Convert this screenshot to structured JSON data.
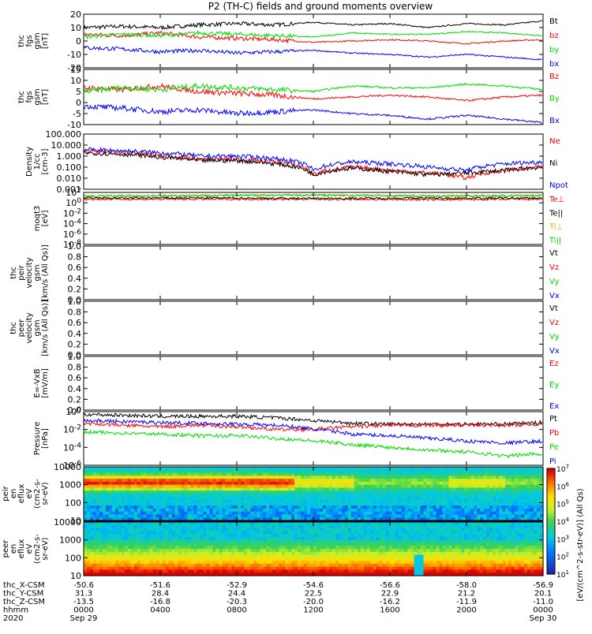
{
  "title": "P2 (TH-C) fields and ground moments overview",
  "colors": {
    "black": "#000000",
    "red": "#ff0000",
    "green": "#00dd00",
    "blue": "#0000ff"
  },
  "colorbar_label": "[eV/(cm^2-s-str-eV)] (All Qs)",
  "colorbar_ticks": [
    "10^1",
    "10^2",
    "10^3",
    "10^4",
    "10^5",
    "10^6",
    "10^7"
  ],
  "footer": {
    "rows": [
      {
        "label": "thc_X-CSM",
        "values": [
          "-50.6",
          "-51.6",
          "-52.9",
          "-54.6",
          "-56.6",
          "-58.0",
          "-56.9"
        ]
      },
      {
        "label": "thc_Y-CSM",
        "values": [
          "31.3",
          "28.4",
          "24.4",
          "22.5",
          "22.9",
          "21.2",
          "20.1"
        ]
      },
      {
        "label": "thc_Z-CSM",
        "values": [
          "-13.5",
          "-16.8",
          "-20.3",
          "-20.0",
          "-16.2",
          "-11.9",
          "-11.0"
        ]
      },
      {
        "label": "hhmm",
        "values": [
          "0000",
          "0400",
          "0800",
          "1200",
          "1600",
          "2000",
          "0000"
        ]
      },
      {
        "label": "2020",
        "values": [
          "Sep 29",
          "",
          "",
          "",
          "",
          "",
          "Sep 30"
        ]
      }
    ]
  },
  "chart_data": [
    {
      "type": "line",
      "ylabel": [
        "thc",
        "fgs",
        "gsm",
        "[nT]"
      ],
      "ylim": [
        -20,
        20
      ],
      "ticks": [
        "20",
        "10",
        "0",
        "-10",
        "-20"
      ],
      "legend": [
        {
          "name": "Bt",
          "color": "#000000"
        },
        {
          "name": "bz",
          "color": "#ff0000"
        },
        {
          "name": "by",
          "color": "#00dd00"
        },
        {
          "name": "bx",
          "color": "#0000ff"
        }
      ],
      "series": [
        {
          "name": "Bt",
          "x": [
            0,
            2,
            4,
            6,
            8,
            10,
            12,
            14,
            16,
            18,
            20,
            22,
            24
          ],
          "y": [
            10,
            11,
            10,
            12,
            13,
            12,
            14,
            12,
            13,
            10,
            13,
            12,
            15
          ]
        },
        {
          "name": "bz",
          "x": [
            0,
            2,
            4,
            6,
            8,
            10,
            12,
            14,
            16,
            18,
            20,
            22,
            24
          ],
          "y": [
            5,
            4,
            6,
            3,
            2,
            1,
            -1,
            0,
            1,
            0,
            -2,
            0,
            1
          ]
        },
        {
          "name": "by",
          "x": [
            0,
            2,
            4,
            6,
            8,
            10,
            12,
            14,
            16,
            18,
            20,
            22,
            24
          ],
          "y": [
            3,
            5,
            4,
            6,
            5,
            4,
            3,
            6,
            5,
            5,
            7,
            6,
            4
          ]
        },
        {
          "name": "bx",
          "x": [
            0,
            2,
            4,
            6,
            8,
            10,
            12,
            14,
            16,
            18,
            20,
            22,
            24
          ],
          "y": [
            -5,
            -6,
            -8,
            -7,
            -9,
            -8,
            -7,
            -9,
            -10,
            -12,
            -10,
            -12,
            -14
          ]
        }
      ]
    },
    {
      "type": "line",
      "ylabel": [
        "thc",
        "fgs",
        "gsm",
        "[nT]"
      ],
      "ylim": [
        -15,
        15
      ],
      "ticks": [
        "15",
        "10",
        "5",
        "0",
        "-5",
        "-10"
      ],
      "legend": [
        {
          "name": "Bz",
          "color": "#ff0000"
        },
        {
          "name": "By",
          "color": "#00dd00"
        },
        {
          "name": "Bx",
          "color": "#0000ff"
        }
      ],
      "series": [
        {
          "name": "Bz",
          "x": [
            0,
            2,
            4,
            6,
            8,
            10,
            12,
            14,
            16,
            18,
            20,
            22,
            24
          ],
          "y": [
            5,
            4,
            6,
            3,
            2,
            1,
            -1,
            0,
            1,
            0,
            -2,
            0,
            1
          ]
        },
        {
          "name": "By",
          "x": [
            0,
            2,
            4,
            6,
            8,
            10,
            12,
            14,
            16,
            18,
            20,
            22,
            24
          ],
          "y": [
            3,
            5,
            4,
            6,
            5,
            4,
            3,
            6,
            5,
            5,
            7,
            6,
            4
          ]
        },
        {
          "name": "Bx",
          "x": [
            0,
            2,
            4,
            6,
            8,
            10,
            12,
            14,
            16,
            18,
            20,
            22,
            24
          ],
          "y": [
            -5,
            -6,
            -8,
            -7,
            -9,
            -8,
            -7,
            -9,
            -10,
            -12,
            -10,
            -12,
            -14
          ]
        }
      ]
    },
    {
      "type": "line",
      "ylabel": [
        "Density",
        "1/cc",
        "[cm-3]"
      ],
      "yscale": "log",
      "ylim": [
        0.001,
        100
      ],
      "ticks": [
        "100.000",
        "10.000",
        "1.000",
        "0.100",
        "0.010",
        "0.001"
      ],
      "legend": [
        {
          "name": "Ne",
          "color": "#ff0000"
        },
        {
          "name": "Ni",
          "color": "#000000"
        },
        {
          "name": "Npot",
          "color": "#0000ff"
        }
      ],
      "series": [
        {
          "name": "Ne",
          "x": [
            0,
            2,
            4,
            6,
            8,
            10,
            12,
            14,
            16,
            18,
            20,
            22,
            24
          ],
          "y": [
            3,
            2,
            1,
            0.5,
            0.5,
            0.3,
            0.02,
            0.1,
            0.05,
            0.03,
            0.01,
            0.05,
            0.1
          ]
        },
        {
          "name": "Ni",
          "x": [
            0,
            2,
            4,
            6,
            8,
            10,
            12,
            14,
            16,
            18,
            20,
            22,
            24
          ],
          "y": [
            2,
            1.5,
            0.8,
            0.4,
            0.4,
            0.2,
            0.02,
            0.08,
            0.04,
            0.02,
            0.03,
            0.05,
            0.1
          ]
        },
        {
          "name": "Npot",
          "x": [
            0,
            2,
            4,
            6,
            8,
            10,
            12,
            14,
            16,
            18,
            20,
            22,
            24
          ],
          "y": [
            4,
            3,
            2,
            1,
            1,
            0.6,
            0.05,
            0.3,
            0.2,
            0.1,
            0.05,
            0.2,
            0.3
          ]
        }
      ]
    },
    {
      "type": "line",
      "ylabel": [
        "moqt3",
        "[eV]"
      ],
      "yscale": "log",
      "ylim": [
        1e-08,
        100
      ],
      "ticks": [
        "10^2",
        "10^0",
        "10^-2",
        "10^-4",
        "10^-6",
        "10^-8"
      ],
      "legend": [
        {
          "name": "Te⊥",
          "color": "#ff0000"
        },
        {
          "name": "Te||",
          "color": "#000000"
        },
        {
          "name": "Ti⊥",
          "color": "#ddaa00"
        },
        {
          "name": "Ti||",
          "color": "#00dd00"
        }
      ],
      "series": [
        {
          "name": "Te⊥",
          "x": [
            0,
            6,
            12,
            18,
            24
          ],
          "y": [
            5,
            5,
            5,
            4,
            5
          ]
        },
        {
          "name": "Te||",
          "x": [
            0,
            6,
            12,
            18,
            24
          ],
          "y": [
            8,
            9,
            7,
            8,
            8
          ]
        },
        {
          "name": "Ti⊥",
          "x": [
            0,
            6,
            12,
            18,
            24
          ],
          "y": [
            20,
            25,
            30,
            20,
            25
          ]
        },
        {
          "name": "Ti||",
          "x": [
            0,
            6,
            12,
            18,
            24
          ],
          "y": [
            20,
            25,
            30,
            20,
            25
          ]
        }
      ]
    },
    {
      "type": "line",
      "ylabel": [
        "thc",
        "peir",
        "velocity",
        "gsm",
        "[km/s (All Qs)]"
      ],
      "ylim": [
        0,
        1
      ],
      "ticks": [
        "1.0",
        "0.8",
        "0.6",
        "0.4",
        "0.2",
        "0.0"
      ],
      "legend": [
        {
          "name": "Vt",
          "color": "#000000"
        },
        {
          "name": "Vz",
          "color": "#ff0000"
        },
        {
          "name": "Vy",
          "color": "#00dd00"
        },
        {
          "name": "Vx",
          "color": "#0000ff"
        }
      ],
      "series": []
    },
    {
      "type": "line",
      "ylabel": [
        "thc",
        "peer",
        "velocity",
        "gsm",
        "[km/s (All Qs)]"
      ],
      "ylim": [
        0,
        1
      ],
      "ticks": [
        "1.0",
        "0.8",
        "0.6",
        "0.4",
        "0.2",
        "0.0"
      ],
      "legend": [
        {
          "name": "Vt",
          "color": "#000000"
        },
        {
          "name": "Vz",
          "color": "#ff0000"
        },
        {
          "name": "Vy",
          "color": "#00dd00"
        },
        {
          "name": "Vx",
          "color": "#0000ff"
        }
      ],
      "series": []
    },
    {
      "type": "line",
      "ylabel": [
        "E=-VxB",
        "[mV/m]"
      ],
      "ylim": [
        0,
        1
      ],
      "ticks": [
        "1.0",
        "0.8",
        "0.6",
        "0.4",
        "0.2",
        "0.0"
      ],
      "legend": [
        {
          "name": "Ez",
          "color": "#ff0000"
        },
        {
          "name": "Ey",
          "color": "#00dd00"
        },
        {
          "name": "Ex",
          "color": "#0000ff"
        }
      ],
      "series": []
    },
    {
      "type": "line",
      "ylabel": [
        "Pressure",
        "[nPa]"
      ],
      "yscale": "log",
      "ylim": [
        1e-06,
        1
      ],
      "ticks": [
        "10^0",
        "10^-2",
        "10^-4",
        "10^-6"
      ],
      "legend": [
        {
          "name": "Pt",
          "color": "#000000"
        },
        {
          "name": "Pb",
          "color": "#ff0000"
        },
        {
          "name": "Pe",
          "color": "#00dd00"
        },
        {
          "name": "Pi",
          "color": "#0000ff"
        }
      ],
      "series": [
        {
          "name": "Pt",
          "x": [
            0,
            2,
            4,
            6,
            8,
            10,
            12,
            14,
            16,
            18,
            20,
            22,
            24
          ],
          "y": [
            0.5,
            0.4,
            0.3,
            0.3,
            0.3,
            0.2,
            0.1,
            0.05,
            0.04,
            0.04,
            0.04,
            0.04,
            0.06
          ]
        },
        {
          "name": "Pb",
          "x": [
            0,
            2,
            4,
            6,
            8,
            10,
            12,
            14,
            16,
            18,
            20,
            22,
            24
          ],
          "y": [
            0.05,
            0.03,
            0.02,
            0.03,
            0.02,
            0.01,
            0.01,
            0.02,
            0.03,
            0.03,
            0.03,
            0.03,
            0.04
          ]
        },
        {
          "name": "Pe",
          "x": [
            0,
            2,
            4,
            6,
            8,
            10,
            12,
            14,
            16,
            18,
            20,
            22,
            24
          ],
          "y": [
            0.005,
            0.004,
            0.003,
            0.002,
            0.002,
            0.001,
            0.0005,
            0.0002,
            0.0001,
            5e-05,
            3e-05,
            1e-05,
            2e-05
          ]
        },
        {
          "name": "Pi",
          "x": [
            0,
            2,
            4,
            6,
            8,
            10,
            12,
            14,
            16,
            18,
            20,
            22,
            24
          ],
          "y": [
            0.1,
            0.08,
            0.06,
            0.05,
            0.04,
            0.03,
            0.01,
            0.003,
            0.002,
            0.001,
            0.0005,
            0.0003,
            0.0005
          ]
        }
      ]
    },
    {
      "type": "heatmap",
      "ylabel": [
        "thc",
        "peir",
        "en",
        "eflux",
        "eV",
        "(cm2-s-",
        "sr-eV)"
      ],
      "yscale": "log",
      "ylim": [
        5,
        30000
      ],
      "ticks": [
        "10000",
        "1000",
        "100",
        "10"
      ]
    },
    {
      "type": "heatmap",
      "ylabel": [
        "thc",
        "peer",
        "en",
        "eflux",
        "eV",
        "(cm2-s-",
        "sr-eV)"
      ],
      "yscale": "log",
      "ylim": [
        5,
        30000
      ],
      "ticks": [
        "10000",
        "1000",
        "100",
        "10"
      ]
    }
  ]
}
